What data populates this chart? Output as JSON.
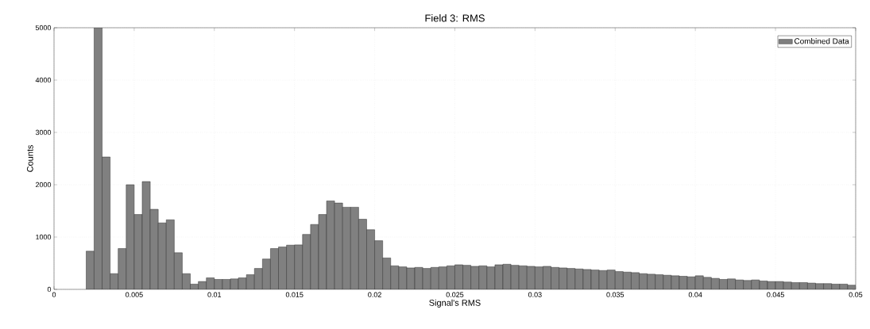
{
  "chart_data": {
    "type": "histogram",
    "title": "Field 3: RMS",
    "xlabel": "Signal's RMS",
    "ylabel": "Counts",
    "bins": [
      0.002,
      0.0025,
      0.003,
      0.0035,
      0.004,
      0.0045,
      0.005,
      0.0055,
      0.006,
      0.0065,
      0.007,
      0.0075,
      0.008,
      0.0085,
      0.009,
      0.0095,
      0.01,
      0.0105,
      0.011,
      0.0115,
      0.012,
      0.0125,
      0.013,
      0.0135,
      0.014,
      0.0145,
      0.015,
      0.0155,
      0.016,
      0.0165,
      0.017,
      0.0175,
      0.018,
      0.0185,
      0.019,
      0.0195,
      0.02,
      0.0205,
      0.021,
      0.0215,
      0.022,
      0.0225,
      0.023,
      0.0235,
      0.024,
      0.0245,
      0.025,
      0.0255,
      0.026,
      0.0265,
      0.027,
      0.0275,
      0.028,
      0.0285,
      0.029,
      0.0295,
      0.03,
      0.0305,
      0.031,
      0.0315,
      0.032,
      0.0325,
      0.033,
      0.0335,
      0.034,
      0.0345,
      0.035,
      0.0355,
      0.036,
      0.0365,
      0.037,
      0.0375,
      0.038,
      0.0385,
      0.039,
      0.0395,
      0.04,
      0.0405,
      0.041,
      0.0415,
      0.042,
      0.0425,
      0.043,
      0.0435,
      0.044,
      0.0445,
      0.045,
      0.0455,
      0.046,
      0.0465,
      0.047,
      0.0475,
      0.048,
      0.0485,
      0.049,
      0.0495,
      0.05
    ],
    "series": [
      {
        "name": "Combined Data",
        "color": "#808080",
        "values": [
          730,
          5000,
          2530,
          300,
          780,
          2000,
          1430,
          2060,
          1530,
          1270,
          1330,
          700,
          300,
          100,
          150,
          220,
          190,
          190,
          200,
          220,
          280,
          400,
          580,
          780,
          810,
          845,
          850,
          1050,
          1240,
          1430,
          1690,
          1650,
          1570,
          1570,
          1340,
          1140,
          930,
          600,
          450,
          430,
          410,
          420,
          400,
          420,
          430,
          450,
          470,
          460,
          440,
          450,
          430,
          470,
          480,
          460,
          450,
          440,
          430,
          440,
          420,
          410,
          400,
          390,
          380,
          370,
          360,
          370,
          340,
          330,
          320,
          300,
          290,
          280,
          270,
          260,
          250,
          240,
          260,
          230,
          210,
          190,
          200,
          180,
          170,
          180,
          160,
          150,
          150,
          140,
          130,
          130,
          120,
          110,
          110,
          100,
          100,
          80
        ]
      }
    ],
    "xlim": [
      0,
      0.05
    ],
    "ylim": [
      0,
      5000
    ],
    "xticks": [
      0,
      0.005,
      0.01,
      0.015,
      0.02,
      0.025,
      0.03,
      0.035,
      0.04,
      0.045,
      0.05
    ],
    "yticks": [
      0,
      1000,
      2000,
      3000,
      4000,
      5000
    ],
    "grid": true,
    "legend": "top right"
  }
}
